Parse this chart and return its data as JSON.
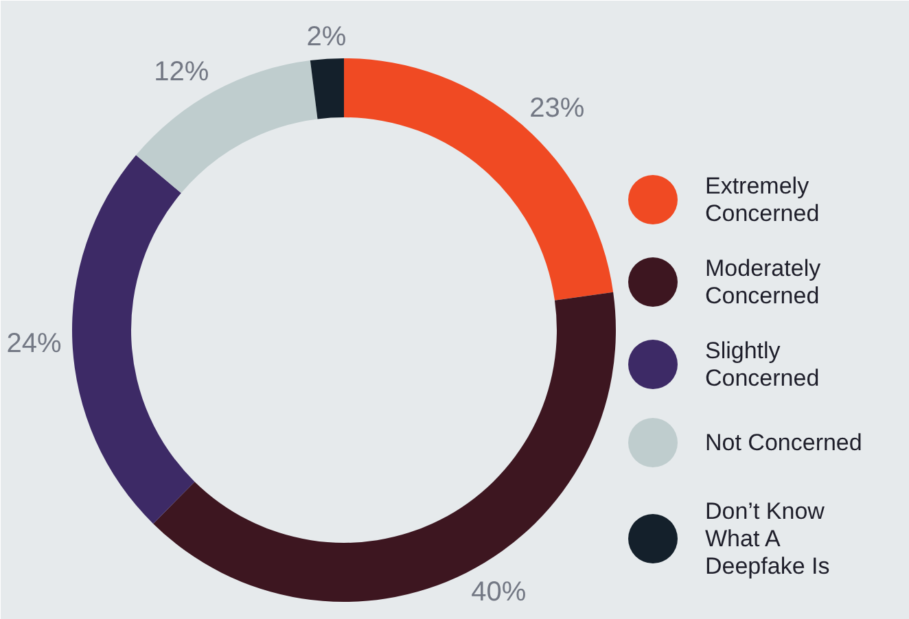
{
  "chart_data": {
    "type": "donut",
    "categories": [
      "Extremely Concerned",
      "Moderately Concerned",
      "Slightly Concerned",
      "Not Concerned",
      "Don’t Know What A Deepfake Is"
    ],
    "values": [
      23,
      40,
      24,
      12,
      2
    ],
    "value_labels": [
      "23%",
      "40%",
      "24%",
      "12%",
      "2%"
    ],
    "colors": [
      "#f04a23",
      "#3d1620",
      "#3d2a66",
      "#bfcdce",
      "#14202b"
    ],
    "legend": "right"
  }
}
